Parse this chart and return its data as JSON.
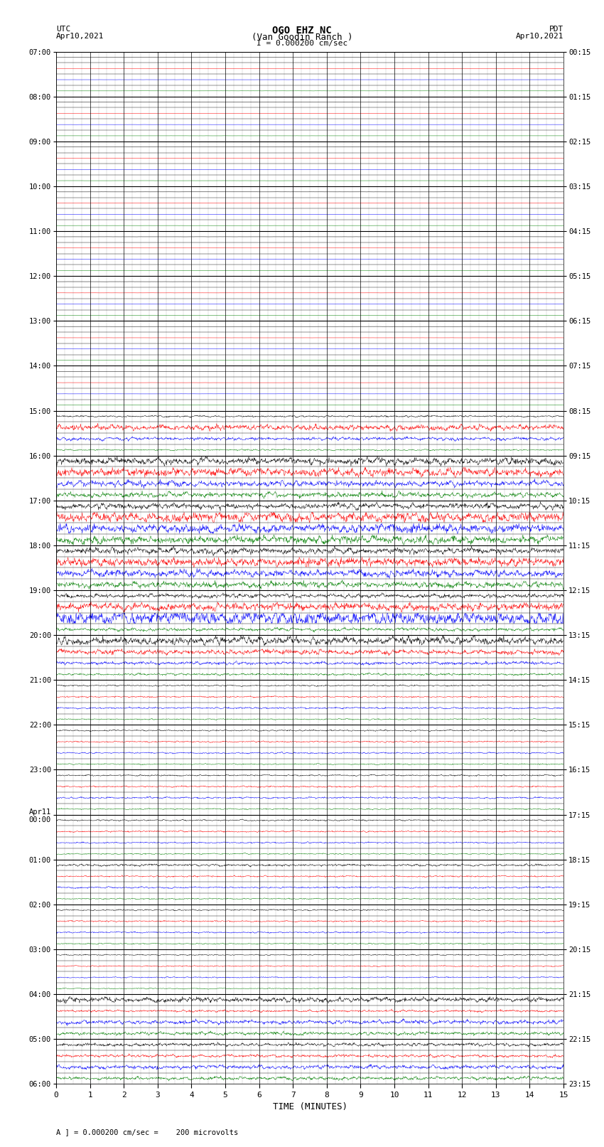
{
  "title_line1": "OGO EHZ NC",
  "title_line2": "(Van Goodin Ranch )",
  "title_line3": "I = 0.000200 cm/sec",
  "left_header_line1": "UTC",
  "left_header_line2": "Apr10,2021",
  "right_header_line1": "PDT",
  "right_header_line2": "Apr10,2021",
  "footer_text": "A ] = 0.000200 cm/sec =    200 microvolts",
  "xlabel": "TIME (MINUTES)",
  "utc_hour_labels": [
    "07:00",
    "08:00",
    "09:00",
    "10:00",
    "11:00",
    "12:00",
    "13:00",
    "14:00",
    "15:00",
    "16:00",
    "17:00",
    "18:00",
    "19:00",
    "20:00",
    "21:00",
    "22:00",
    "23:00",
    "Apr11\n00:00",
    "01:00",
    "02:00",
    "03:00",
    "04:00",
    "05:00",
    "06:00"
  ],
  "pdt_hour_labels": [
    "00:15",
    "01:15",
    "02:15",
    "03:15",
    "04:15",
    "05:15",
    "06:15",
    "07:15",
    "08:15",
    "09:15",
    "10:15",
    "11:15",
    "12:15",
    "13:15",
    "14:15",
    "15:15",
    "16:15",
    "17:15",
    "18:15",
    "19:15",
    "20:15",
    "21:15",
    "22:15",
    "23:15"
  ],
  "n_hours": 23,
  "traces_per_hour": 4,
  "minutes_per_row": 15,
  "colors": {
    "black": "#000000",
    "red": "#ff0000",
    "blue": "#0000ff",
    "green": "#008000",
    "background": "#ffffff"
  },
  "trace_order": [
    "black",
    "red",
    "blue",
    "green"
  ],
  "hour_amplitudes": {
    "0": [
      0.003,
      0.003,
      0.003,
      0.003
    ],
    "1": [
      0.003,
      0.003,
      0.003,
      0.003
    ],
    "2": [
      0.003,
      0.003,
      0.003,
      0.003
    ],
    "3": [
      0.003,
      0.003,
      0.003,
      0.003
    ],
    "4": [
      0.003,
      0.003,
      0.003,
      0.003
    ],
    "5": [
      0.003,
      0.003,
      0.003,
      0.003
    ],
    "6": [
      0.003,
      0.003,
      0.003,
      0.003
    ],
    "7": [
      0.003,
      0.003,
      0.003,
      0.003
    ],
    "8": [
      0.06,
      0.2,
      0.12,
      0.05
    ],
    "9": [
      0.25,
      0.3,
      0.2,
      0.18
    ],
    "10": [
      0.2,
      0.35,
      0.3,
      0.28
    ],
    "11": [
      0.22,
      0.3,
      0.25,
      0.22
    ],
    "12": [
      0.15,
      0.28,
      0.5,
      0.12
    ],
    "13": [
      0.28,
      0.18,
      0.12,
      0.08
    ],
    "14": [
      0.05,
      0.05,
      0.06,
      0.04
    ],
    "15": [
      0.05,
      0.05,
      0.05,
      0.04
    ],
    "16": [
      0.05,
      0.05,
      0.06,
      0.04
    ],
    "17": [
      0.05,
      0.05,
      0.05,
      0.04
    ],
    "18": [
      0.08,
      0.05,
      0.06,
      0.04
    ],
    "19": [
      0.05,
      0.05,
      0.05,
      0.04
    ],
    "20": [
      0.04,
      0.04,
      0.04,
      0.03
    ],
    "21": [
      0.18,
      0.08,
      0.15,
      0.12
    ],
    "22": [
      0.12,
      0.1,
      0.14,
      0.12
    ]
  },
  "n_points": 1500,
  "figsize": [
    8.5,
    16.13
  ],
  "dpi": 100
}
